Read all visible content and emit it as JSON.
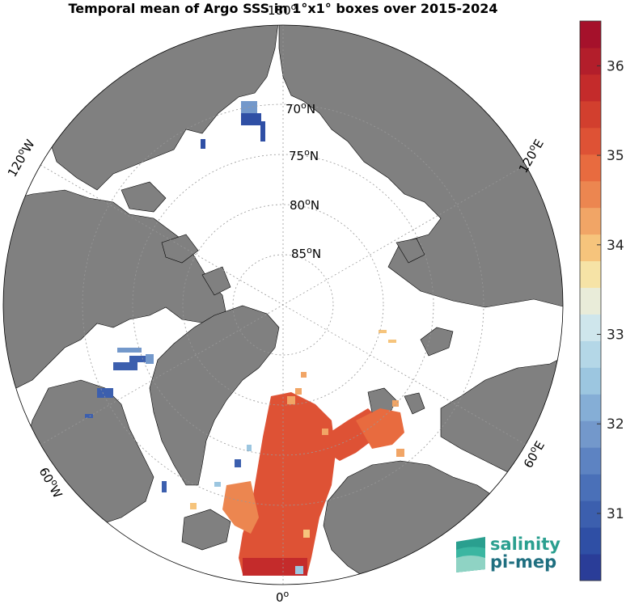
{
  "title": "Temporal mean of Argo SSS in 1°x1° boxes over 2015-2024",
  "graticule": {
    "latitudes": [
      70,
      75,
      80,
      85
    ],
    "latitude_labels": [
      {
        "deg": "70",
        "unit": "N"
      },
      {
        "deg": "75",
        "unit": "N"
      },
      {
        "deg": "80",
        "unit": "N"
      },
      {
        "deg": "85",
        "unit": "N"
      }
    ],
    "longitude_labels": [
      {
        "lon": 180,
        "deg": "180",
        "unit": ""
      },
      {
        "lon": 120,
        "deg": "120",
        "unit": "E"
      },
      {
        "lon": 60,
        "deg": "60",
        "unit": "E"
      },
      {
        "lon": 0,
        "deg": "0",
        "unit": ""
      },
      {
        "lon": -60,
        "deg": "60",
        "unit": "W"
      },
      {
        "lon": -120,
        "deg": "120",
        "unit": "W"
      }
    ]
  },
  "colorbar": {
    "ticks": [
      31,
      32,
      33,
      34,
      35,
      36
    ],
    "range": [
      30.25,
      36.5
    ],
    "colors": [
      "#2a3d98",
      "#2f4fa5",
      "#3c5fae",
      "#4a70b8",
      "#5d83c2",
      "#7398cb",
      "#85aed6",
      "#9cc6e0",
      "#b4d7e7",
      "#cfe6ec",
      "#e9ecd9",
      "#f6e3a6",
      "#f6c47c",
      "#f1a566",
      "#ec8650",
      "#e86b3f",
      "#de5235",
      "#d23f2e",
      "#c42b2b",
      "#b31e2b",
      "#a5112b"
    ]
  },
  "colors": {
    "land": "#808080",
    "ocean": "#ffffff",
    "outline": "#000000"
  },
  "logo": {
    "line1": "salinity",
    "line2": "pi-mep"
  }
}
